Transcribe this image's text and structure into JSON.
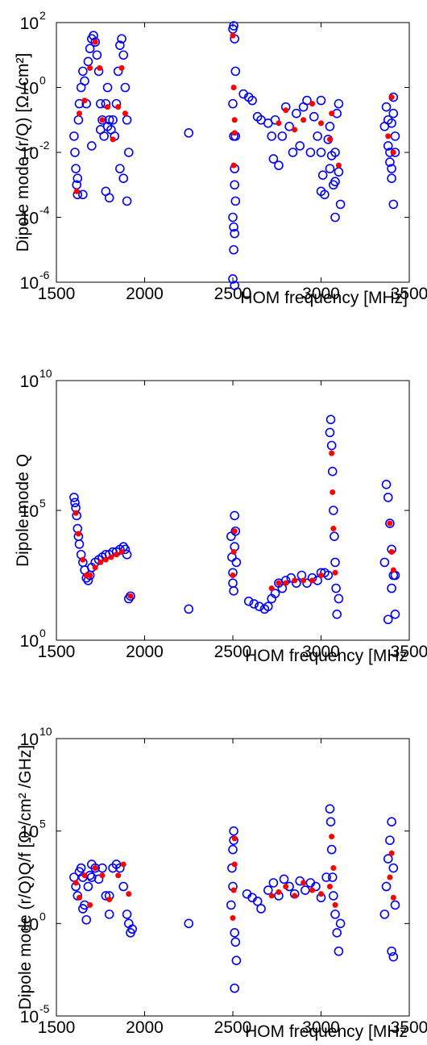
{
  "chart_data": [
    {
      "type": "scatter",
      "xlabel": "HOM frequency  [MHz]",
      "ylabel": "Dipole mode (r/Q)  [Ω /cm²]",
      "xlim": [
        1500,
        3500
      ],
      "ylim_exponent": [
        -6,
        2
      ],
      "yscale": "log",
      "x_ticks": [
        "1500",
        "2000",
        "2500",
        "3000",
        "3500"
      ],
      "y_ticks": [
        {
          "base": "10",
          "exp": "2"
        },
        {
          "base": "10",
          "exp": "0"
        },
        {
          "base": "10",
          "exp": "-2"
        },
        {
          "base": "10",
          "exp": "-4"
        },
        {
          "base": "10",
          "exp": "-6"
        }
      ],
      "series": [
        {
          "marker": "open-circle",
          "color": "#0000ff",
          "x": [
            1600,
            1605,
            1610,
            1615,
            1620,
            1625,
            1630,
            1640,
            1650,
            1660,
            1670,
            1680,
            1690,
            1700,
            1710,
            1720,
            1730,
            1740,
            1750,
            1760,
            1770,
            1780,
            1790,
            1800,
            1810,
            1820,
            1830,
            1840,
            1850,
            1860,
            1870,
            1880,
            1890,
            1900,
            1910,
            1620,
            1650,
            1700,
            1750,
            1780,
            1800,
            1860,
            1880,
            1900,
            1790,
            2250,
            2500,
            2505,
            2510,
            2515,
            2500,
            2505,
            2510,
            2515,
            2500,
            2505,
            2510,
            2500,
            2510,
            2515,
            2510,
            2505,
            2560,
            2590,
            2610,
            2640,
            2660,
            2700,
            2720,
            2730,
            2740,
            2760,
            2780,
            2800,
            2820,
            2840,
            2860,
            2880,
            2900,
            2920,
            2940,
            2960,
            2980,
            3000,
            3010,
            3020,
            3040,
            3050,
            3060,
            3070,
            3080,
            3090,
            3100,
            3110,
            3000,
            3050,
            3080,
            3100,
            3080,
            3000,
            3360,
            3370,
            3380,
            3390,
            3400,
            3410,
            3420,
            3380,
            3390,
            3400,
            3410,
            3400,
            3410,
            3420
          ],
          "y": [
            -1.5,
            -2,
            -2.5,
            -3,
            -3.3,
            -1,
            -0.5,
            0,
            0.5,
            0.2,
            -0.5,
            0.8,
            1.2,
            1.5,
            1.6,
            1.4,
            1.0,
            0.5,
            -0.5,
            -1,
            -1.5,
            -0.5,
            0,
            -1,
            -1.3,
            -1,
            -1.5,
            -0.5,
            0.5,
            1.3,
            1.5,
            1,
            0,
            -1,
            -2,
            -2.8,
            -3.3,
            -1.8,
            -1.3,
            -3.2,
            -3.4,
            -2.5,
            -2.8,
            -3.5,
            -1.2,
            -1.4,
            1.8,
            1.9,
            1.5,
            0.5,
            -0.5,
            -1.5,
            -2.5,
            -3.5,
            -4,
            -4.3,
            -4.5,
            -5.9,
            -6.1,
            -1.5,
            -3,
            -5,
            -0.2,
            -0.3,
            -0.4,
            -0.9,
            -1.0,
            -1.1,
            -1.5,
            -2.2,
            -1.0,
            -2.4,
            -1.5,
            -0.6,
            -1.2,
            -2,
            -0.8,
            -1.8,
            -0.6,
            -0.4,
            -2.0,
            -0.9,
            -1.5,
            -0.4,
            -2.7,
            -3.3,
            -1.6,
            -1.2,
            -2.1,
            -3.0,
            -2.0,
            -0.8,
            -2.6,
            -3.6,
            -2.0,
            -2.5,
            -2.9,
            -0.5,
            -4.0,
            -3.2,
            -1.2,
            -0.6,
            -1.0,
            -2.0,
            -2.5,
            -0.3,
            -1.5,
            -1.8,
            -2.3,
            -1.1,
            -0.8,
            -2.8,
            -3.6,
            -2.0
          ]
        },
        {
          "marker": "filled-dot",
          "color": "#ff0000",
          "x": [
            1615,
            1630,
            1660,
            1690,
            1720,
            1745,
            1760,
            1790,
            1820,
            1850,
            1870,
            1890,
            2500,
            2505,
            2510,
            2505,
            2510,
            2760,
            2800,
            2850,
            2900,
            2950,
            3000,
            3050,
            3060,
            3100,
            3380,
            3400,
            3410
          ],
          "y": [
            -3.2,
            -0.8,
            -0.4,
            0.6,
            1.4,
            0.6,
            -1.0,
            -0.6,
            -1.6,
            -0.6,
            0.6,
            -0.8,
            1.6,
            0.0,
            -1.4,
            -2.4,
            -1.0,
            -1.1,
            -0.7,
            -1.3,
            -1.0,
            -0.5,
            -1.1,
            -1.6,
            -0.8,
            -2.4,
            -1.5,
            -0.3,
            -2.0
          ]
        }
      ]
    },
    {
      "type": "scatter",
      "xlabel": "HOM frequency  [MHz",
      "ylabel": "Dipole mode Q",
      "xlim": [
        1500,
        3500
      ],
      "ylim_exponent": [
        0,
        10
      ],
      "yscale": "log",
      "x_ticks": [
        "1500",
        "2000",
        "2500",
        "3000",
        "3500"
      ],
      "y_ticks": [
        {
          "base": "10",
          "exp": "10"
        },
        {
          "base": "10",
          "exp": "5"
        },
        {
          "base": "10",
          "exp": "0"
        }
      ],
      "series": [
        {
          "marker": "open-circle",
          "color": "#0000ff",
          "x": [
            1600,
            1605,
            1610,
            1615,
            1620,
            1625,
            1630,
            1640,
            1650,
            1660,
            1670,
            1680,
            1690,
            1700,
            1720,
            1740,
            1760,
            1780,
            1800,
            1820,
            1840,
            1860,
            1880,
            1890,
            1900,
            1910,
            1920,
            2250,
            2490,
            2495,
            2500,
            2505,
            2510,
            2515,
            2520,
            2500,
            2510,
            2590,
            2620,
            2650,
            2680,
            2700,
            2720,
            2740,
            2760,
            2780,
            2800,
            2830,
            2860,
            2890,
            2920,
            2950,
            2980,
            3000,
            3020,
            3040,
            3050,
            3055,
            3060,
            3065,
            3070,
            3075,
            3080,
            3085,
            3090,
            3100,
            3360,
            3370,
            3380,
            3390,
            3400,
            3410,
            3420,
            3380,
            3400,
            3420
          ],
          "y": [
            5.5,
            5.3,
            5.1,
            4.8,
            4.3,
            4.0,
            3.7,
            3.3,
            3.0,
            2.7,
            2.4,
            2.3,
            2.5,
            2.8,
            3.0,
            3.1,
            3.2,
            3.3,
            3.3,
            3.4,
            3.4,
            3.5,
            3.6,
            3.5,
            3.3,
            1.6,
            1.7,
            1.2,
            4.0,
            3.2,
            2.6,
            1.9,
            4.8,
            4.2,
            3.0,
            2.2,
            3.6,
            1.5,
            1.4,
            1.3,
            1.2,
            1.3,
            1.6,
            1.8,
            2.2,
            2.0,
            2.3,
            2.4,
            2.2,
            2.5,
            2.2,
            2.4,
            2.3,
            2.6,
            2.6,
            2.5,
            8.0,
            8.5,
            7.5,
            6.5,
            5.0,
            4.0,
            3.0,
            2.0,
            1.0,
            1.6,
            3.0,
            6.0,
            5.5,
            4.5,
            3.5,
            2.5,
            1.0,
            0.8,
            2.0,
            2.5
          ]
        },
        {
          "marker": "filled-dot",
          "color": "#ff0000",
          "x": [
            1610,
            1625,
            1650,
            1670,
            1690,
            1720,
            1750,
            1780,
            1810,
            1840,
            1870,
            1920,
            2500,
            2505,
            2510,
            2720,
            2760,
            2800,
            2850,
            2900,
            2950,
            3000,
            3060,
            3065,
            3070,
            3080,
            3390,
            3400,
            3410
          ],
          "y": [
            4.9,
            4.1,
            3.1,
            2.5,
            2.5,
            2.8,
            3.0,
            3.1,
            3.2,
            3.3,
            3.4,
            1.7,
            2.5,
            3.4,
            4.2,
            2.0,
            2.2,
            2.2,
            2.3,
            2.3,
            2.3,
            2.5,
            7.2,
            5.7,
            4.3,
            2.6,
            4.5,
            3.4,
            2.7
          ]
        }
      ]
    },
    {
      "type": "scatter",
      "xlabel": "HOM frequency  [MHz",
      "ylabel": "Dipole mode (r/Q)Q/f  [Ω /cm² /GHz]",
      "xlim": [
        1500,
        3500
      ],
      "ylim_exponent": [
        -5,
        10
      ],
      "yscale": "log",
      "x_ticks": [
        "1500",
        "2000",
        "2500",
        "3000",
        "3500"
      ],
      "y_ticks": [
        {
          "base": "10",
          "exp": "10"
        },
        {
          "base": "10",
          "exp": "5"
        },
        {
          "base": "10",
          "exp": "0"
        },
        {
          "base": "10",
          "exp": "-5"
        }
      ],
      "series": [
        {
          "marker": "open-circle",
          "color": "#0000ff",
          "x": [
            1600,
            1610,
            1620,
            1630,
            1640,
            1650,
            1660,
            1670,
            1680,
            1690,
            1700,
            1720,
            1740,
            1760,
            1780,
            1800,
            1820,
            1840,
            1860,
            1880,
            1900,
            1910,
            1920,
            1930,
            1650,
            1700,
            1800,
            2250,
            2490,
            2495,
            2500,
            2505,
            2510,
            2515,
            2520,
            2500,
            2505,
            2510,
            2580,
            2610,
            2640,
            2660,
            2700,
            2730,
            2760,
            2790,
            2820,
            2850,
            2880,
            2910,
            2940,
            2970,
            3000,
            3030,
            3050,
            3055,
            3060,
            3065,
            3070,
            3080,
            3090,
            3100,
            3110,
            3360,
            3370,
            3380,
            3390,
            3400,
            3410,
            3420,
            3400,
            3410
          ],
          "y": [
            2.5,
            2.0,
            1.5,
            2.8,
            3.0,
            2.5,
            1.0,
            0.2,
            2.0,
            2.6,
            3.2,
            3.0,
            2.4,
            3.0,
            1.5,
            0.5,
            3.0,
            3.2,
            3.0,
            2.0,
            0.5,
            0.0,
            -0.5,
            -0.3,
            0.8,
            2.5,
            1.5,
            0.0,
            1.0,
            3.0,
            4.0,
            5.0,
            -0.5,
            -1.0,
            -2.0,
            2.0,
            4.5,
            -3.5,
            1.6,
            1.4,
            1.2,
            0.8,
            1.8,
            2.2,
            1.5,
            2.4,
            2.0,
            1.6,
            2.3,
            1.8,
            2.2,
            2.0,
            1.4,
            2.5,
            6.2,
            5.5,
            4.0,
            2.5,
            1.5,
            0.5,
            -0.5,
            -1.5,
            0.0,
            0.5,
            2.0,
            3.5,
            4.5,
            5.5,
            3.0,
            1.0,
            -1.5,
            -1.8
          ]
        },
        {
          "marker": "filled-dot",
          "color": "#ff0000",
          "x": [
            1610,
            1630,
            1660,
            1690,
            1720,
            1760,
            1800,
            1850,
            1880,
            1910,
            2500,
            2505,
            2510,
            2510,
            2720,
            2760,
            2800,
            2850,
            2900,
            2950,
            3000,
            3050,
            3060,
            3070,
            3080,
            3390,
            3400,
            3410
          ],
          "y": [
            2.2,
            1.4,
            2.6,
            1.0,
            3.0,
            2.6,
            1.3,
            2.6,
            3.2,
            1.6,
            0.3,
            1.8,
            3.2,
            4.6,
            1.5,
            1.7,
            2.0,
            1.5,
            2.2,
            1.8,
            1.6,
            2.0,
            4.7,
            3.0,
            1.0,
            2.5,
            3.8,
            1.4
          ]
        }
      ]
    }
  ]
}
